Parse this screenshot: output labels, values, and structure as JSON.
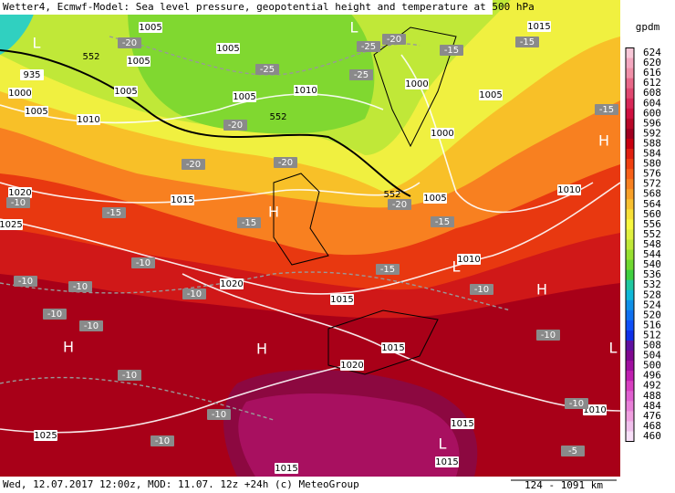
{
  "header": {
    "title": "Wetter4, Ecmwf-Model: Sea level pressure, geopotential height and temperature at 500 hPa"
  },
  "footer": {
    "valid": "Wed, 12.07.2017 12:00z, MOD: 11.07. 12z +24h (c) MeteoGroup",
    "scale": "124 - 1091 km"
  },
  "legend": {
    "unit": "gpdm",
    "values": [
      "624",
      "620",
      "616",
      "612",
      "608",
      "604",
      "600",
      "596",
      "592",
      "588",
      "584",
      "580",
      "576",
      "572",
      "568",
      "564",
      "560",
      "556",
      "552",
      "548",
      "544",
      "540",
      "536",
      "532",
      "528",
      "524",
      "520",
      "516",
      "512",
      "508",
      "504",
      "500",
      "496",
      "492",
      "488",
      "484",
      "476",
      "468",
      "460"
    ],
    "colors": [
      "#f8c8d8",
      "#f4a8c0",
      "#f090a8",
      "#e86888",
      "#e04870",
      "#d82858",
      "#d01040",
      "#b80828",
      "#a00020",
      "#c80010",
      "#e02010",
      "#f04010",
      "#f86018",
      "#f88020",
      "#f8a028",
      "#f8c030",
      "#f8e038",
      "#f8f840",
      "#e0f040",
      "#c0e838",
      "#98e030",
      "#70d830",
      "#40d040",
      "#20c8a0",
      "#10b8d8",
      "#1090e8",
      "#1070f0",
      "#1050f8",
      "#1030e8",
      "#6010a0",
      "#800890",
      "#a010a0",
      "#c020b0",
      "#d840c0",
      "#e060d0",
      "#e880d8",
      "#f0a0e0",
      "#f0c0ec",
      "#f8e0f8"
    ]
  },
  "map": {
    "pressure_labels": [
      "1005",
      "1005",
      "1005",
      "1005",
      "1005",
      "1005",
      "1000",
      "935",
      "1010",
      "1010",
      "1000",
      "1000",
      "1005",
      "1015",
      "1010",
      "1020",
      "1025",
      "1015",
      "1005",
      "1010",
      "1020",
      "1015",
      "1015",
      "1020",
      "1010",
      "1025",
      "1015",
      "1015",
      "1015"
    ],
    "temperature_labels": [
      "-20",
      "-25",
      "-25",
      "-20",
      "-25",
      "-15",
      "-15",
      "-20",
      "-20",
      "-20",
      "-15",
      "-10",
      "-15",
      "-15",
      "-20",
      "-15",
      "-15",
      "-10",
      "-10",
      "-10",
      "-10",
      "-10",
      "-10",
      "-10",
      "-10",
      "-10",
      "-10",
      "-10",
      "-10",
      "-5"
    ],
    "height_labels": [
      "552",
      "552",
      "552"
    ],
    "centers": [
      "L",
      "L",
      "H",
      "H",
      "H",
      "L",
      "H",
      "L",
      "L",
      "H"
    ]
  }
}
